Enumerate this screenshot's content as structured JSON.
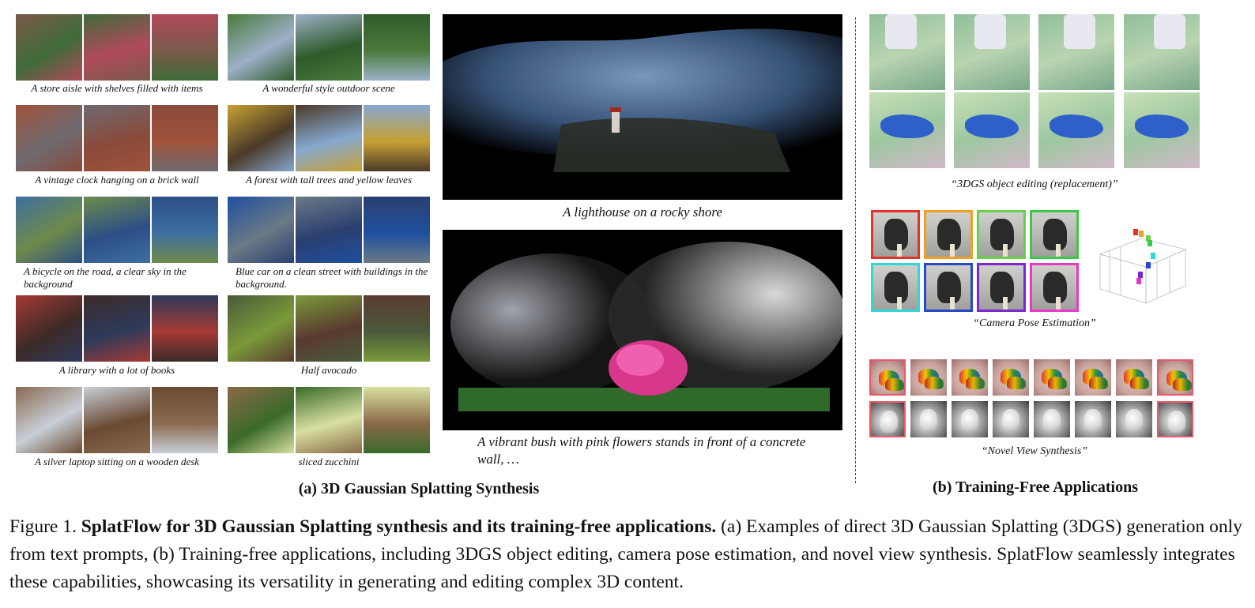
{
  "panel_a": {
    "left_column": [
      {
        "caption": "A store aisle with shelves filled with items",
        "colors": [
          "#7a5a4a",
          "#3f6b3a",
          "#b04a5a"
        ]
      },
      {
        "caption": "A vintage clock hanging on a brick wall",
        "colors": [
          "#a0523a",
          "#6e6a70",
          "#8a4a3a"
        ]
      },
      {
        "caption": "A bicycle on the road, a clear sky in the background",
        "colors": [
          "#3e6fa0",
          "#6e8a4a",
          "#2c4f86"
        ]
      },
      {
        "caption": "A library with a lot of books",
        "colors": [
          "#a63a34",
          "#3c2a28",
          "#2e3a5a"
        ]
      },
      {
        "caption": "A silver laptop sitting on a wooden desk",
        "colors": [
          "#8a6a50",
          "#c8cfd8",
          "#6a4a32"
        ]
      }
    ],
    "right_column": [
      {
        "caption": "A wonderful style outdoor scene",
        "colors": [
          "#4a7a3a",
          "#9cb0c8",
          "#2f5a2a"
        ]
      },
      {
        "caption": "A forest with tall trees and yellow leaves",
        "colors": [
          "#c8a034",
          "#4a3a28",
          "#86a8d0"
        ]
      },
      {
        "caption": "Blue car on a clean street with buildings in the background.",
        "colors": [
          "#1f4fa0",
          "#6a7a86",
          "#2a3f70"
        ]
      },
      {
        "caption": "Half avocado",
        "colors": [
          "#4a5a3a",
          "#7a9a3a",
          "#5a3a30"
        ]
      },
      {
        "caption": "sliced zucchini",
        "colors": [
          "#8a6a48",
          "#3a6a2a",
          "#d8e0a0"
        ]
      }
    ],
    "big_images": [
      {
        "caption": "A lighthouse on a rocky shore",
        "tint": "#6f8fb8"
      },
      {
        "caption": "A vibrant bush with pink flowers stands in front of a concrete wall, …",
        "tint": "#cfd6dc"
      }
    ],
    "subtitle": "(a) 3D Gaussian Splatting Synthesis"
  },
  "panel_b": {
    "editing_caption": "“3DGS object editing (replacement)”",
    "pose_caption": "“Camera Pose Estimation”",
    "pose_border_colors": [
      "#e8302a",
      "#f0a020",
      "#6ad04a",
      "#3cc84a",
      "#30d8d8",
      "#2848c8",
      "#7a28d0",
      "#e838c8"
    ],
    "nvs_caption": "“Novel View Synthesis”",
    "subtitle": "(b) Training-Free Applications"
  },
  "figure_caption": {
    "label": "Figure 1.",
    "bold": "SplatFlow for 3D Gaussian Splatting synthesis and its training-free applications.",
    "body": "(a) Examples of direct 3D Gaussian Splatting (3DGS) generation only from text prompts, (b) Training-free applications, including 3DGS object editing, camera pose estimation, and novel view synthesis. SplatFlow seamlessly integrates these capabilities, showcasing its versatility in generating and editing complex 3D content."
  }
}
